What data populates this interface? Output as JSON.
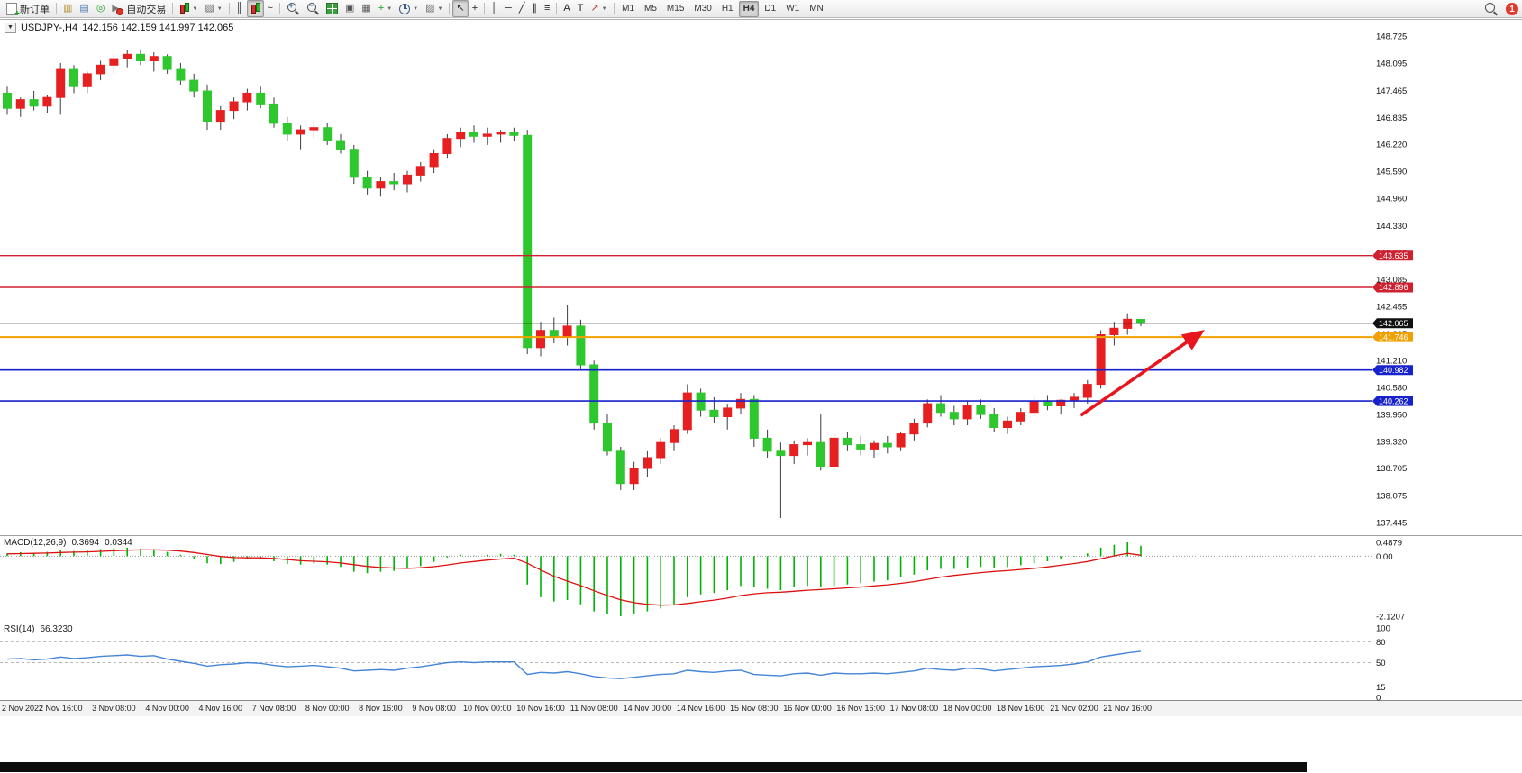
{
  "window": {
    "notification_count": "1",
    "timeframes": [
      "M1",
      "M5",
      "M15",
      "M30",
      "H1",
      "H4",
      "D1",
      "W1",
      "MN"
    ],
    "active_timeframe": "H4",
    "toolbar_items": [
      {
        "kind": "button",
        "name": "new-order-button",
        "icon": {
          "type": "doc"
        },
        "label": "新订单"
      },
      {
        "kind": "sep"
      },
      {
        "kind": "button",
        "name": "market-watch-button",
        "icon": {
          "type": "glyph",
          "glyph": "▥",
          "color": "#b08a2a"
        }
      },
      {
        "kind": "button",
        "name": "data-window-button",
        "icon": {
          "type": "glyph",
          "glyph": "▤",
          "color": "#4a7ab5"
        }
      },
      {
        "kind": "button",
        "name": "market-depth-button",
        "icon": {
          "type": "glyph",
          "glyph": "◎",
          "color": "#2e9e2e"
        }
      },
      {
        "kind": "button",
        "name": "auto-trading-button",
        "icon": {
          "type": "autotrade"
        },
        "label": "自动交易"
      },
      {
        "kind": "sep"
      },
      {
        "kind": "button",
        "name": "new-chart-button",
        "icon": {
          "type": "candles"
        },
        "caret": true
      },
      {
        "kind": "button",
        "name": "profiles-button",
        "icon": {
          "type": "glyph",
          "glyph": "▧",
          "color": "#6a6a6a"
        },
        "caret": true
      },
      {
        "kind": "sep"
      },
      {
        "kind": "button",
        "name": "bar-chart-button",
        "icon": {
          "type": "glyph",
          "glyph": "║",
          "color": "#333333"
        }
      },
      {
        "kind": "button",
        "name": "candlestick-chart-button",
        "icon": {
          "type": "candles"
        },
        "pressed": true
      },
      {
        "kind": "button",
        "name": "line-chart-button",
        "icon": {
          "type": "glyph",
          "glyph": "~",
          "color": "#333333"
        }
      },
      {
        "kind": "sep"
      },
      {
        "kind": "button",
        "name": "zoom-in-button",
        "icon": {
          "type": "mag",
          "sub": "+"
        }
      },
      {
        "kind": "button",
        "name": "zoom-out-button",
        "icon": {
          "type": "mag",
          "sub": "−"
        }
      },
      {
        "kind": "button",
        "name": "tile-windows-button",
        "icon": {
          "type": "grid"
        }
      },
      {
        "kind": "button",
        "name": "cascade-windows-button",
        "icon": {
          "type": "glyph",
          "glyph": "▣",
          "color": "#555555"
        }
      },
      {
        "kind": "button",
        "name": "arrange-windows-button",
        "icon": {
          "type": "glyph",
          "glyph": "▦",
          "color": "#555555"
        }
      },
      {
        "kind": "button",
        "name": "indicators-button",
        "icon": {
          "type": "glyph",
          "glyph": "+",
          "color": "#14a014"
        },
        "caret": true
      },
      {
        "kind": "button",
        "name": "periods-button",
        "icon": {
          "type": "clock"
        },
        "caret": true
      },
      {
        "kind": "button",
        "name": "templates-button",
        "icon": {
          "type": "glyph",
          "glyph": "▨",
          "color": "#6a6a6a"
        },
        "caret": true
      },
      {
        "kind": "sep"
      },
      {
        "kind": "button",
        "name": "cursor-button",
        "icon": {
          "type": "glyph",
          "glyph": "↖",
          "color": "#222222"
        },
        "pressed": true
      },
      {
        "kind": "button",
        "name": "crosshair-button",
        "icon": {
          "type": "glyph",
          "glyph": "+",
          "color": "#222222"
        }
      },
      {
        "kind": "sep"
      },
      {
        "kind": "button",
        "name": "vertical-line-button",
        "icon": {
          "type": "glyph",
          "glyph": "│",
          "color": "#222222"
        }
      },
      {
        "kind": "button",
        "name": "horizontal-line-button",
        "icon": {
          "type": "glyph",
          "glyph": "─",
          "color": "#222222"
        }
      },
      {
        "kind": "button",
        "name": "trendline-button",
        "icon": {
          "type": "glyph",
          "glyph": "╱",
          "color": "#222222"
        }
      },
      {
        "kind": "button",
        "name": "channel-button",
        "icon": {
          "type": "glyph",
          "glyph": "∥",
          "color": "#222222"
        }
      },
      {
        "kind": "button",
        "name": "fibonacci-button",
        "icon": {
          "type": "glyph",
          "glyph": "≡",
          "color": "#222222"
        }
      },
      {
        "kind": "sep"
      },
      {
        "kind": "button",
        "name": "text-button",
        "icon": {
          "type": "glyph",
          "glyph": "A",
          "color": "#222222"
        }
      },
      {
        "kind": "button",
        "name": "text-label-button",
        "icon": {
          "type": "glyph",
          "glyph": "T",
          "color": "#222222"
        }
      },
      {
        "kind": "button",
        "name": "arrows-button",
        "icon": {
          "type": "glyph",
          "glyph": "↗",
          "color": "#b03030"
        },
        "caret": true
      },
      {
        "kind": "sep"
      }
    ]
  },
  "chart": {
    "symbol": "USDJPY-,H4",
    "ohlc_text": "142.156 142.159 141.997 142.065",
    "price_axis_labels": [
      "148.725",
      "148.095",
      "147.465",
      "146.835",
      "146.220",
      "145.590",
      "144.960",
      "144.330",
      "143.700",
      "143.085",
      "142.455",
      "141.825",
      "141.210",
      "140.580",
      "139.950",
      "139.320",
      "138.705",
      "138.075",
      "137.445"
    ],
    "hlines": [
      {
        "price": 143.635,
        "label": "143.635",
        "color": "#d02030",
        "width": 1.4
      },
      {
        "price": 142.896,
        "label": "142.896",
        "color": "#d02030",
        "width": 1.4
      },
      {
        "price": 142.065,
        "label": "142.065",
        "color": "#111111",
        "width": 1
      },
      {
        "price": 141.746,
        "label": "141.746",
        "color": "#f0a000",
        "width": 2
      },
      {
        "price": 140.982,
        "label": "140.982",
        "color": "#1822cc",
        "width": 1.6
      },
      {
        "price": 140.262,
        "label": "140.262",
        "color": "#1822cc",
        "width": 1.6
      }
    ],
    "colors": {
      "bull": "#e62020",
      "bear": "#2ec82e",
      "wick": "#3c3c3c",
      "macd_hist": "#00b400",
      "macd_signal": "#dd1111",
      "rsi_line": "#4585d6"
    },
    "annotations": {
      "arrow": {
        "color": "#e8141e",
        "width": 3.5,
        "from_bar": 80.5,
        "from_price": 139.93,
        "to_bar": 89.5,
        "to_price": 141.85
      }
    }
  },
  "chart_data": {
    "type": "candlestick",
    "symbol": "USDJPY-",
    "timeframe": "H4",
    "price_range": [
      137.445,
      148.725
    ],
    "label_every": 4,
    "time_labels": [
      "2 Nov 2022",
      "2 Nov 16:00",
      "3 Nov 08:00",
      "4 Nov 00:00",
      "4 Nov 16:00",
      "7 Nov 08:00",
      "8 Nov 00:00",
      "8 Nov 16:00",
      "9 Nov 08:00",
      "10 Nov 00:00",
      "10 Nov 16:00",
      "11 Nov 08:00",
      "14 Nov 00:00",
      "14 Nov 16:00",
      "15 Nov 08:00",
      "16 Nov 00:00",
      "16 Nov 16:00",
      "17 Nov 08:00",
      "18 Nov 00:00",
      "18 Nov 16:00",
      "21 Nov 02:00",
      "21 Nov 16:00"
    ],
    "candles": [
      [
        147.4,
        147.55,
        146.9,
        147.05
      ],
      [
        147.05,
        147.3,
        146.85,
        147.25
      ],
      [
        147.25,
        147.45,
        147.0,
        147.1
      ],
      [
        147.1,
        147.35,
        146.95,
        147.3
      ],
      [
        147.3,
        148.1,
        146.9,
        147.95
      ],
      [
        147.95,
        148.05,
        147.4,
        147.55
      ],
      [
        147.55,
        147.9,
        147.4,
        147.85
      ],
      [
        147.85,
        148.15,
        147.7,
        148.05
      ],
      [
        148.05,
        148.3,
        147.85,
        148.2
      ],
      [
        148.2,
        148.4,
        148.0,
        148.3
      ],
      [
        148.3,
        148.42,
        148.05,
        148.15
      ],
      [
        148.15,
        148.35,
        147.9,
        148.25
      ],
      [
        148.25,
        148.3,
        147.85,
        147.95
      ],
      [
        147.95,
        148.1,
        147.6,
        147.7
      ],
      [
        147.7,
        147.85,
        147.3,
        147.45
      ],
      [
        147.45,
        147.6,
        146.55,
        146.75
      ],
      [
        146.75,
        147.1,
        146.55,
        147.0
      ],
      [
        147.0,
        147.3,
        146.8,
        147.2
      ],
      [
        147.2,
        147.5,
        147.0,
        147.4
      ],
      [
        147.4,
        147.55,
        147.05,
        147.15
      ],
      [
        147.15,
        147.3,
        146.6,
        146.7
      ],
      [
        146.7,
        146.85,
        146.3,
        146.45
      ],
      [
        146.45,
        146.65,
        146.1,
        146.55
      ],
      [
        146.55,
        146.75,
        146.35,
        146.6
      ],
      [
        146.6,
        146.7,
        146.2,
        146.3
      ],
      [
        146.3,
        146.45,
        146.0,
        146.1
      ],
      [
        146.1,
        146.2,
        145.3,
        145.45
      ],
      [
        145.45,
        145.6,
        145.05,
        145.2
      ],
      [
        145.2,
        145.45,
        145.0,
        145.35
      ],
      [
        145.35,
        145.55,
        145.15,
        145.3
      ],
      [
        145.3,
        145.6,
        145.1,
        145.5
      ],
      [
        145.5,
        145.8,
        145.35,
        145.7
      ],
      [
        145.7,
        146.1,
        145.55,
        146.0
      ],
      [
        146.0,
        146.45,
        145.9,
        146.35
      ],
      [
        146.35,
        146.6,
        146.15,
        146.5
      ],
      [
        146.5,
        146.65,
        146.25,
        146.4
      ],
      [
        146.4,
        146.6,
        146.2,
        146.45
      ],
      [
        146.45,
        146.55,
        146.25,
        146.5
      ],
      [
        146.5,
        146.6,
        146.3,
        146.42
      ],
      [
        146.42,
        146.55,
        141.35,
        141.5
      ],
      [
        141.5,
        142.1,
        141.3,
        141.9
      ],
      [
        141.9,
        142.2,
        141.6,
        141.75
      ],
      [
        141.75,
        142.5,
        141.55,
        142.0
      ],
      [
        142.0,
        142.15,
        141.0,
        141.1
      ],
      [
        141.1,
        141.2,
        139.6,
        139.75
      ],
      [
        139.75,
        139.95,
        139.0,
        139.1
      ],
      [
        139.1,
        139.2,
        138.2,
        138.35
      ],
      [
        138.35,
        138.85,
        138.2,
        138.7
      ],
      [
        138.7,
        139.1,
        138.5,
        138.95
      ],
      [
        138.95,
        139.4,
        138.8,
        139.3
      ],
      [
        139.3,
        139.7,
        139.1,
        139.6
      ],
      [
        139.6,
        140.65,
        139.5,
        140.45
      ],
      [
        140.45,
        140.55,
        139.9,
        140.05
      ],
      [
        140.05,
        140.35,
        139.75,
        139.9
      ],
      [
        139.9,
        140.2,
        139.6,
        140.1
      ],
      [
        140.1,
        140.45,
        139.95,
        140.3
      ],
      [
        140.3,
        140.4,
        139.2,
        139.4
      ],
      [
        139.4,
        139.6,
        138.95,
        139.1
      ],
      [
        139.1,
        139.3,
        137.55,
        139.0
      ],
      [
        139.0,
        139.35,
        138.8,
        139.25
      ],
      [
        139.25,
        139.4,
        139.0,
        139.3
      ],
      [
        139.3,
        139.95,
        138.65,
        138.75
      ],
      [
        138.75,
        139.5,
        138.65,
        139.4
      ],
      [
        139.4,
        139.55,
        139.1,
        139.25
      ],
      [
        139.25,
        139.45,
        139.0,
        139.15
      ],
      [
        139.15,
        139.35,
        138.95,
        139.28
      ],
      [
        139.28,
        139.45,
        139.05,
        139.2
      ],
      [
        139.2,
        139.55,
        139.1,
        139.5
      ],
      [
        139.5,
        139.85,
        139.35,
        139.75
      ],
      [
        139.75,
        140.3,
        139.65,
        140.2
      ],
      [
        140.2,
        140.4,
        139.9,
        140.0
      ],
      [
        140.0,
        140.15,
        139.7,
        139.85
      ],
      [
        139.85,
        140.25,
        139.7,
        140.15
      ],
      [
        140.15,
        140.3,
        139.85,
        139.95
      ],
      [
        139.95,
        140.1,
        139.55,
        139.65
      ],
      [
        139.65,
        139.9,
        139.5,
        139.8
      ],
      [
        139.8,
        140.1,
        139.7,
        140.0
      ],
      [
        140.0,
        140.35,
        139.9,
        140.25
      ],
      [
        140.25,
        140.4,
        140.05,
        140.15
      ],
      [
        140.15,
        140.3,
        139.95,
        140.28
      ],
      [
        140.28,
        140.45,
        140.1,
        140.35
      ],
      [
        140.35,
        140.75,
        140.2,
        140.65
      ],
      [
        140.65,
        141.9,
        140.55,
        141.8
      ],
      [
        141.8,
        142.1,
        141.55,
        141.95
      ],
      [
        141.95,
        142.3,
        141.8,
        142.16
      ],
      [
        142.156,
        142.159,
        141.997,
        142.065
      ]
    ],
    "indicators": [
      {
        "type": "MACD",
        "display": "MACD(12,26,9)",
        "value_main": "0.3694",
        "value_signal": "0.0344",
        "scale": [
          0.4879,
          0,
          -2.1207
        ],
        "scale_labels": [
          "0.4879",
          "0.00",
          "-2.1207"
        ],
        "histogram": [
          0.1,
          0.14,
          0.12,
          0.15,
          0.22,
          0.18,
          0.2,
          0.25,
          0.28,
          0.3,
          0.26,
          0.24,
          0.15,
          0.05,
          -0.08,
          -0.25,
          -0.28,
          -0.2,
          -0.1,
          -0.08,
          -0.18,
          -0.28,
          -0.3,
          -0.26,
          -0.3,
          -0.38,
          -0.55,
          -0.6,
          -0.55,
          -0.52,
          -0.45,
          -0.35,
          -0.2,
          -0.05,
          0.05,
          0.02,
          0.05,
          0.08,
          0.05,
          -1.0,
          -1.45,
          -1.6,
          -1.55,
          -1.7,
          -1.95,
          -2.05,
          -2.12,
          -2.05,
          -1.95,
          -1.85,
          -1.7,
          -1.45,
          -1.35,
          -1.3,
          -1.2,
          -1.05,
          -1.1,
          -1.15,
          -1.2,
          -1.1,
          -1.05,
          -1.1,
          -1.05,
          -1.0,
          -0.95,
          -0.9,
          -0.85,
          -0.75,
          -0.65,
          -0.5,
          -0.45,
          -0.45,
          -0.4,
          -0.38,
          -0.4,
          -0.38,
          -0.32,
          -0.25,
          -0.18,
          -0.1,
          -0.02,
          0.1,
          0.3,
          0.4,
          0.4879,
          0.3694
        ],
        "signal": [
          0.08,
          0.09,
          0.1,
          0.11,
          0.13,
          0.14,
          0.15,
          0.17,
          0.19,
          0.21,
          0.22,
          0.22,
          0.21,
          0.18,
          0.13,
          0.06,
          -0.01,
          -0.05,
          -0.06,
          -0.06,
          -0.08,
          -0.12,
          -0.16,
          -0.18,
          -0.2,
          -0.24,
          -0.3,
          -0.36,
          -0.4,
          -0.42,
          -0.43,
          -0.41,
          -0.37,
          -0.31,
          -0.24,
          -0.19,
          -0.14,
          -0.1,
          -0.07,
          -0.25,
          -0.49,
          -0.71,
          -0.88,
          -1.04,
          -1.22,
          -1.39,
          -1.54,
          -1.64,
          -1.7,
          -1.73,
          -1.72,
          -1.67,
          -1.61,
          -1.55,
          -1.48,
          -1.39,
          -1.33,
          -1.29,
          -1.27,
          -1.24,
          -1.2,
          -1.18,
          -1.15,
          -1.12,
          -1.09,
          -1.05,
          -1.01,
          -0.96,
          -0.9,
          -0.82,
          -0.74,
          -0.68,
          -0.63,
          -0.58,
          -0.54,
          -0.51,
          -0.47,
          -0.43,
          -0.38,
          -0.32,
          -0.26,
          -0.19,
          -0.09,
          0.01,
          0.1,
          0.0344
        ]
      },
      {
        "type": "RSI",
        "display": "RSI(14)",
        "value_main": "66.3230",
        "scale": [
          100,
          80,
          50,
          15,
          0
        ],
        "scale_labels": [
          "100",
          "80",
          "50",
          "15",
          "0"
        ],
        "level_lines": [
          80,
          50,
          15
        ],
        "values": [
          55,
          56,
          54,
          55,
          58,
          56,
          57,
          59,
          60,
          61,
          59,
          60,
          55,
          52,
          49,
          45,
          47,
          48,
          50,
          49,
          46,
          44,
          45,
          46,
          44,
          42,
          38,
          39,
          40,
          39,
          42,
          44,
          47,
          50,
          51,
          50,
          51,
          51,
          51,
          33,
          36,
          35,
          37,
          34,
          30,
          28,
          27,
          29,
          31,
          33,
          34,
          39,
          37,
          36,
          38,
          39,
          33,
          32,
          31,
          34,
          35,
          32,
          35,
          34,
          34,
          35,
          34,
          36,
          38,
          42,
          40,
          39,
          42,
          41,
          38,
          40,
          42,
          44,
          45,
          46,
          48,
          51,
          58,
          61,
          64,
          66.323
        ]
      }
    ]
  }
}
